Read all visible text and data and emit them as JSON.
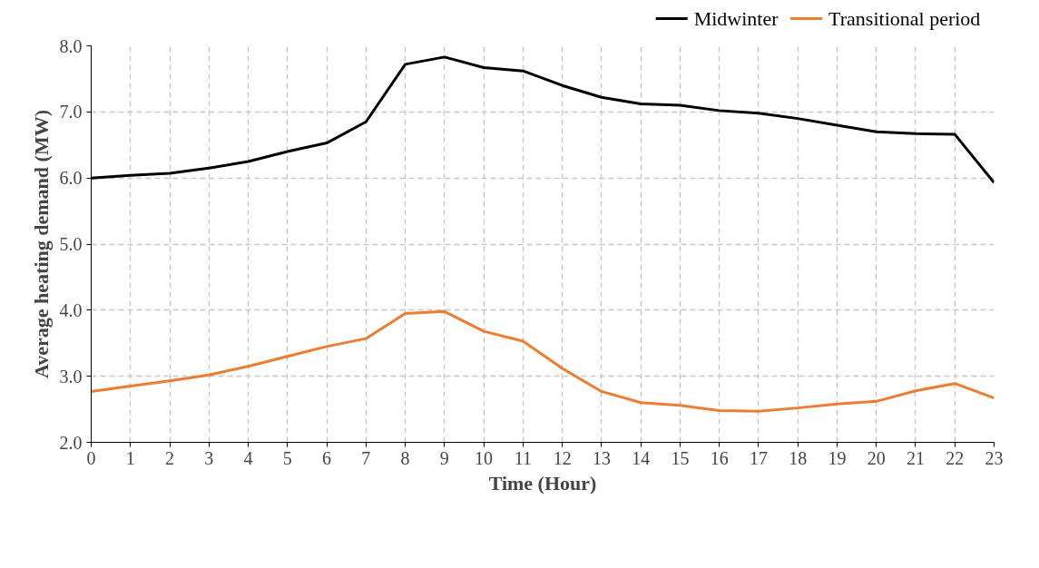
{
  "chart_data": {
    "type": "line",
    "xlabel": "Time (Hour)",
    "ylabel": "Average heating demand (MW)",
    "x": [
      0,
      1,
      2,
      3,
      4,
      5,
      6,
      7,
      8,
      9,
      10,
      11,
      12,
      13,
      14,
      15,
      16,
      17,
      18,
      19,
      20,
      21,
      22,
      23
    ],
    "series": [
      {
        "name": "Midwinter",
        "color": "#000000",
        "values": [
          6.0,
          6.04,
          6.07,
          6.15,
          6.25,
          6.4,
          6.53,
          6.85,
          7.72,
          7.83,
          7.67,
          7.62,
          7.4,
          7.22,
          7.12,
          7.1,
          7.02,
          6.98,
          6.9,
          6.8,
          6.7,
          6.67,
          6.66,
          5.93
        ]
      },
      {
        "name": "Transitional period",
        "color": "#ed7d31",
        "values": [
          2.77,
          2.85,
          2.93,
          3.02,
          3.15,
          3.3,
          3.45,
          3.57,
          3.95,
          3.98,
          3.68,
          3.53,
          3.12,
          2.77,
          2.6,
          2.56,
          2.48,
          2.47,
          2.52,
          2.58,
          2.62,
          2.78,
          2.89,
          2.67
        ]
      }
    ],
    "xlim": [
      0,
      23
    ],
    "xticks": [
      0,
      1,
      2,
      3,
      4,
      5,
      6,
      7,
      8,
      9,
      10,
      11,
      12,
      13,
      14,
      15,
      16,
      17,
      18,
      19,
      20,
      21,
      22,
      23
    ],
    "ylim": [
      2.0,
      8.0
    ],
    "yticks": [
      {
        "value": 2,
        "label": "2.0"
      },
      {
        "value": 3,
        "label": "3.0"
      },
      {
        "value": 4,
        "label": "4.0"
      },
      {
        "value": 5,
        "label": "5.0"
      },
      {
        "value": 6,
        "label": "6.0"
      },
      {
        "value": 7,
        "label": "7.0"
      },
      {
        "value": 8,
        "label": "8.0"
      }
    ],
    "grid": true,
    "legend": "top right",
    "line_style": "solid",
    "marker": "none"
  }
}
